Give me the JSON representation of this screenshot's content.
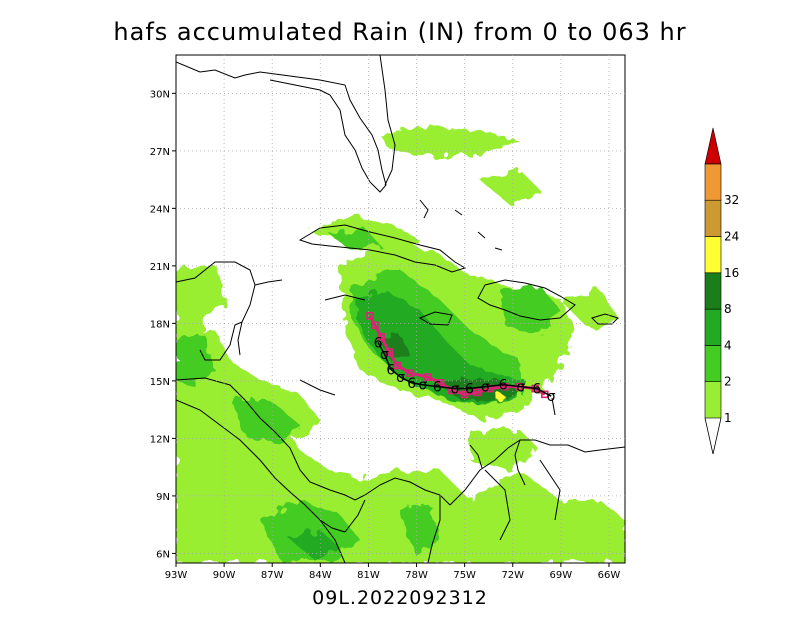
{
  "title": "hafs accumulated Rain (IN) from 0 to 063 hr",
  "footer": "09L.2022092312",
  "map": {
    "lon_range": [
      -93,
      -65
    ],
    "lat_range": [
      5.5,
      32
    ],
    "lon_labels": [
      "93W",
      "90W",
      "87W",
      "84W",
      "81W",
      "78W",
      "75W",
      "72W",
      "69W",
      "66W"
    ],
    "lat_labels": [
      "30N",
      "27N",
      "24N",
      "21N",
      "18N",
      "15N",
      "12N",
      "9N",
      "6N"
    ],
    "colorbar": {
      "levels": [
        "1",
        "2",
        "4",
        "8",
        "16",
        "24",
        "32"
      ],
      "colors": [
        "#99ee33",
        "#44cc22",
        "#22aa22",
        "#1a7f1a",
        "#ffff33",
        "#cc9933",
        "#ee9933",
        "#cc0000"
      ]
    },
    "track_symbol": "6",
    "track_color": "#000000",
    "track_symbol_alt": "σ",
    "forecast_marker_color": "#dd2277",
    "track": [
      {
        "lat": 17.0,
        "lon": -80.4
      },
      {
        "lat": 16.4,
        "lon": -80.0
      },
      {
        "lat": 15.6,
        "lon": -79.6
      },
      {
        "lat": 15.2,
        "lon": -79.0
      },
      {
        "lat": 14.9,
        "lon": -78.3
      },
      {
        "lat": 14.8,
        "lon": -77.6
      },
      {
        "lat": 14.7,
        "lon": -76.7
      },
      {
        "lat": 14.6,
        "lon": -75.6
      },
      {
        "lat": 14.6,
        "lon": -74.7
      },
      {
        "lat": 14.7,
        "lon": -73.7
      },
      {
        "lat": 14.8,
        "lon": -72.6
      },
      {
        "lat": 14.7,
        "lon": -71.5
      },
      {
        "lat": 14.6,
        "lon": -70.5
      },
      {
        "lat": 14.2,
        "lon": -69.6
      }
    ],
    "forecast_track": [
      {
        "lat": 18.4,
        "lon": -80.9
      },
      {
        "lat": 17.9,
        "lon": -80.6
      },
      {
        "lat": 17.3,
        "lon": -80.2
      },
      {
        "lat": 16.5,
        "lon": -79.7
      },
      {
        "lat": 15.8,
        "lon": -79.2
      },
      {
        "lat": 15.4,
        "lon": -78.4
      },
      {
        "lat": 15.2,
        "lon": -77.3
      },
      {
        "lat": 14.9,
        "lon": -76.5
      },
      {
        "lat": 14.5,
        "lon": -75.8
      },
      {
        "lat": 14.3,
        "lon": -75.0
      },
      {
        "lat": 14.4,
        "lon": -74.2
      },
      {
        "lat": 14.6,
        "lon": -73.4
      },
      {
        "lat": 14.7,
        "lon": -72.5
      },
      {
        "lat": 14.7,
        "lon": -71.6
      },
      {
        "lat": 14.6,
        "lon": -70.6
      },
      {
        "lat": 14.3,
        "lon": -70.0
      }
    ]
  }
}
